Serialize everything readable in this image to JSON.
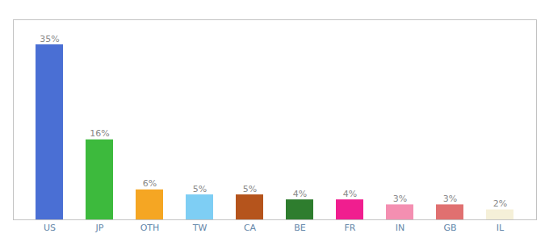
{
  "chart_data": {
    "type": "bar",
    "categories": [
      "US",
      "JP",
      "OTH",
      "TW",
      "CA",
      "BE",
      "FR",
      "IN",
      "GB",
      "IL"
    ],
    "values": [
      35,
      16,
      6,
      5,
      5,
      4,
      4,
      3,
      3,
      2
    ],
    "value_labels": [
      "35%",
      "16%",
      "6%",
      "5%",
      "5%",
      "4%",
      "4%",
      "3%",
      "3%",
      "2%"
    ],
    "colors": [
      "#4a6fd4",
      "#3dba3d",
      "#f5a623",
      "#7ecef4",
      "#b5541c",
      "#2e7d2e",
      "#f01e8f",
      "#f48fb1",
      "#e07070",
      "#f5f0d8"
    ],
    "ylim": [
      0,
      40
    ],
    "grid": false,
    "data_labels": true,
    "tick_labels": "x"
  }
}
